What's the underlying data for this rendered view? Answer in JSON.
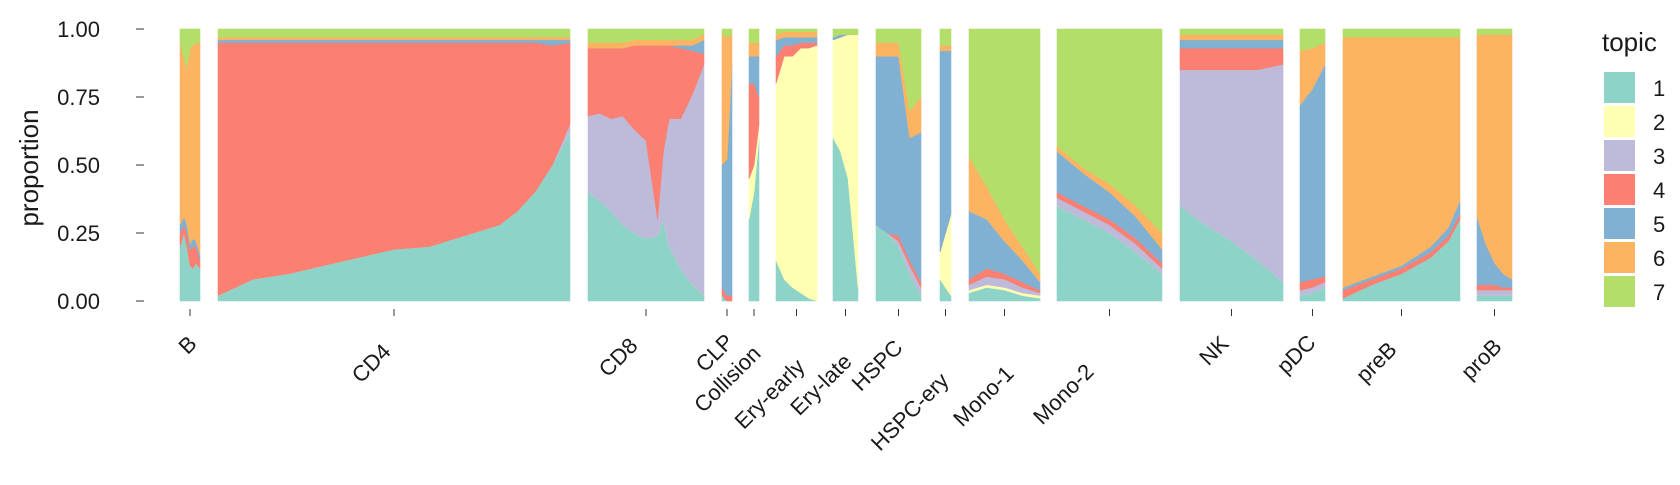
{
  "chart_data": {
    "type": "bar",
    "subtype": "stacked-structure-plot",
    "ylabel": "proportion",
    "ylim": [
      0,
      1
    ],
    "yticks": [
      "0.00",
      "0.25",
      "0.50",
      "0.75",
      "1.00"
    ],
    "legend": {
      "title": "topic",
      "position": "right"
    },
    "topics": [
      {
        "name": "1",
        "color": "#8DD3C7"
      },
      {
        "name": "2",
        "color": "#FFFFB3"
      },
      {
        "name": "3",
        "color": "#BEBADA"
      },
      {
        "name": "4",
        "color": "#FB8072"
      },
      {
        "name": "5",
        "color": "#80B1D3"
      },
      {
        "name": "6",
        "color": "#FDB462"
      },
      {
        "name": "7",
        "color": "#B3DE69"
      }
    ],
    "groups": [
      {
        "label": "B",
        "x": [
          0,
          0.2,
          0.35,
          0.5,
          0.65,
          0.8,
          1
        ],
        "series": [
          [
            0.2,
            0.25,
            0.2,
            0.13,
            0.12,
            0.14,
            0.12
          ],
          [
            0,
            0,
            0,
            0,
            0,
            0,
            0
          ],
          [
            0,
            0,
            0,
            0,
            0,
            0,
            0
          ],
          [
            0.05,
            0.03,
            0.05,
            0.06,
            0.08,
            0.06,
            0.03
          ],
          [
            0.03,
            0.03,
            0.03,
            0.02,
            0.03,
            0.02,
            0.02
          ],
          [
            0.67,
            0.58,
            0.58,
            0.72,
            0.71,
            0.73,
            0.78
          ],
          [
            0.05,
            0.11,
            0.14,
            0.07,
            0.06,
            0.05,
            0.05
          ]
        ]
      },
      {
        "label": "CD4",
        "x": [
          0,
          0.1,
          0.2,
          0.3,
          0.4,
          0.5,
          0.6,
          0.7,
          0.8,
          0.85,
          0.9,
          0.95,
          1
        ],
        "series": [
          [
            0.02,
            0.08,
            0.1,
            0.13,
            0.16,
            0.19,
            0.2,
            0.24,
            0.28,
            0.33,
            0.4,
            0.5,
            0.62
          ],
          [
            0,
            0,
            0,
            0,
            0,
            0,
            0,
            0,
            0,
            0,
            0,
            0,
            0
          ],
          [
            0,
            0,
            0,
            0,
            0,
            0,
            0,
            0,
            0,
            0,
            0,
            0,
            0.03
          ],
          [
            0.93,
            0.87,
            0.85,
            0.82,
            0.79,
            0.76,
            0.75,
            0.71,
            0.67,
            0.62,
            0.55,
            0.44,
            0.3
          ],
          [
            0.01,
            0.01,
            0.01,
            0.01,
            0.01,
            0.01,
            0.01,
            0.01,
            0.01,
            0.01,
            0.01,
            0.02,
            0.01
          ],
          [
            0.01,
            0.01,
            0.01,
            0.01,
            0.01,
            0.01,
            0.01,
            0.01,
            0.01,
            0.01,
            0.01,
            0.01,
            0.01
          ],
          [
            0.03,
            0.03,
            0.03,
            0.03,
            0.03,
            0.03,
            0.03,
            0.03,
            0.03,
            0.03,
            0.03,
            0.03,
            0.03
          ]
        ]
      },
      {
        "label": "CD8",
        "x": [
          0,
          0.1,
          0.2,
          0.3,
          0.4,
          0.5,
          0.6,
          0.65,
          0.7,
          0.8,
          0.9,
          1
        ],
        "series": [
          [
            0.4,
            0.37,
            0.33,
            0.28,
            0.25,
            0.23,
            0.24,
            0.3,
            0.2,
            0.12,
            0.06,
            0.02
          ],
          [
            0,
            0,
            0,
            0,
            0,
            0,
            0,
            0,
            0,
            0,
            0,
            0
          ],
          [
            0.28,
            0.32,
            0.34,
            0.4,
            0.38,
            0.36,
            0.06,
            0.25,
            0.47,
            0.55,
            0.7,
            0.85
          ],
          [
            0.25,
            0.24,
            0.26,
            0.25,
            0.31,
            0.35,
            0.64,
            0.39,
            0.27,
            0.26,
            0.16,
            0.04
          ],
          [
            0,
            0,
            0,
            0,
            0,
            0,
            0,
            0,
            0,
            0.01,
            0.02,
            0.05
          ],
          [
            0.02,
            0.02,
            0.02,
            0.02,
            0.02,
            0.02,
            0.02,
            0.02,
            0.02,
            0.02,
            0.02,
            0.02
          ],
          [
            0.05,
            0.05,
            0.05,
            0.05,
            0.04,
            0.04,
            0.04,
            0.04,
            0.04,
            0.04,
            0.04,
            0.02
          ]
        ]
      },
      {
        "label": "CLP",
        "x": [
          0,
          0.5,
          1
        ],
        "series": [
          [
            0.02,
            0,
            0
          ],
          [
            0,
            0,
            0
          ],
          [
            0,
            0,
            0
          ],
          [
            0.03,
            0.02,
            0.02
          ],
          [
            0.45,
            0.5,
            0.85
          ],
          [
            0.48,
            0.45,
            0.11
          ],
          [
            0.02,
            0.03,
            0.02
          ]
        ]
      },
      {
        "label": "Collision",
        "x": [
          0,
          0.5,
          1
        ],
        "series": [
          [
            0.3,
            0.4,
            0.6
          ],
          [
            0.15,
            0.1,
            0.05
          ],
          [
            0,
            0,
            0
          ],
          [
            0.35,
            0.3,
            0.1
          ],
          [
            0.1,
            0.1,
            0.15
          ],
          [
            0.05,
            0.05,
            0.05
          ],
          [
            0.05,
            0.05,
            0.05
          ]
        ]
      },
      {
        "label": "Ery-early",
        "x": [
          0,
          0.2,
          0.4,
          0.6,
          0.8,
          1
        ],
        "series": [
          [
            0.15,
            0.08,
            0.05,
            0.03,
            0.01,
            0
          ],
          [
            0.65,
            0.82,
            0.85,
            0.9,
            0.92,
            0.94
          ],
          [
            0,
            0,
            0,
            0,
            0,
            0
          ],
          [
            0.1,
            0.04,
            0.04,
            0.02,
            0.02,
            0.01
          ],
          [
            0.06,
            0.03,
            0.03,
            0.02,
            0.02,
            0.02
          ],
          [
            0.02,
            0.02,
            0.02,
            0.02,
            0.02,
            0.02
          ],
          [
            0.02,
            0.01,
            0.01,
            0.01,
            0.01,
            0.01
          ]
        ]
      },
      {
        "label": "Ery-late",
        "x": [
          0,
          0.3,
          0.6,
          1
        ],
        "series": [
          [
            0.6,
            0.55,
            0.45,
            0.05
          ],
          [
            0.36,
            0.42,
            0.53,
            0.93
          ],
          [
            0,
            0,
            0,
            0
          ],
          [
            0,
            0,
            0,
            0
          ],
          [
            0.01,
            0.01,
            0,
            0
          ],
          [
            0,
            0,
            0,
            0
          ],
          [
            0.03,
            0.02,
            0.02,
            0.02
          ]
        ]
      },
      {
        "label": "HSPC",
        "x": [
          0,
          0.25,
          0.5,
          0.75,
          1
        ],
        "series": [
          [
            0.28,
            0.25,
            0.2,
            0.1,
            0.02
          ],
          [
            0,
            0,
            0,
            0,
            0
          ],
          [
            0,
            0,
            0.02,
            0.03,
            0.03
          ],
          [
            0,
            0,
            0.02,
            0.02,
            0.02
          ],
          [
            0.62,
            0.65,
            0.66,
            0.45,
            0.55
          ],
          [
            0.05,
            0.05,
            0.05,
            0.1,
            0.13
          ],
          [
            0.05,
            0.05,
            0.05,
            0.3,
            0.25
          ]
        ]
      },
      {
        "label": "HSPC-ery",
        "x": [
          0,
          0.5,
          1
        ],
        "series": [
          [
            0.08,
            0.05,
            0.02
          ],
          [
            0.1,
            0.2,
            0.3
          ],
          [
            0,
            0,
            0
          ],
          [
            0,
            0,
            0
          ],
          [
            0.74,
            0.67,
            0.6
          ],
          [
            0.02,
            0.02,
            0.02
          ],
          [
            0.06,
            0.06,
            0.06
          ]
        ]
      },
      {
        "label": "Mono-1",
        "x": [
          0,
          0.25,
          0.5,
          0.75,
          1
        ],
        "series": [
          [
            0.03,
            0.05,
            0.04,
            0.02,
            0.01
          ],
          [
            0.01,
            0.01,
            0.01,
            0.01,
            0.01
          ],
          [
            0.02,
            0.03,
            0.03,
            0.02,
            0.01
          ],
          [
            0.02,
            0.03,
            0.02,
            0.02,
            0.01
          ],
          [
            0.25,
            0.18,
            0.12,
            0.08,
            0.03
          ],
          [
            0.2,
            0.12,
            0.08,
            0.05,
            0.03
          ],
          [
            0.47,
            0.58,
            0.7,
            0.8,
            0.9
          ]
        ]
      },
      {
        "label": "Mono-2",
        "x": [
          0,
          0.25,
          0.5,
          0.75,
          1
        ],
        "series": [
          [
            0.35,
            0.3,
            0.25,
            0.18,
            0.1
          ],
          [
            0,
            0,
            0,
            0,
            0
          ],
          [
            0.03,
            0.03,
            0.03,
            0.03,
            0.02
          ],
          [
            0.02,
            0.02,
            0.02,
            0.02,
            0.02
          ],
          [
            0.15,
            0.12,
            0.1,
            0.08,
            0.05
          ],
          [
            0.02,
            0.02,
            0.03,
            0.04,
            0.06
          ],
          [
            0.43,
            0.51,
            0.57,
            0.65,
            0.75
          ]
        ]
      },
      {
        "label": "NK",
        "x": [
          0,
          0.25,
          0.5,
          0.75,
          1
        ],
        "series": [
          [
            0.35,
            0.28,
            0.22,
            0.15,
            0.07
          ],
          [
            0,
            0,
            0,
            0,
            0
          ],
          [
            0.5,
            0.57,
            0.63,
            0.7,
            0.8
          ],
          [
            0.08,
            0.08,
            0.08,
            0.08,
            0.06
          ],
          [
            0.03,
            0.03,
            0.03,
            0.03,
            0.03
          ],
          [
            0.02,
            0.02,
            0.02,
            0.02,
            0.02
          ],
          [
            0.02,
            0.02,
            0.02,
            0.02,
            0.02
          ]
        ]
      },
      {
        "label": "pDC",
        "x": [
          0,
          0.5,
          1
        ],
        "series": [
          [
            0.02,
            0.03,
            0.05
          ],
          [
            0,
            0,
            0
          ],
          [
            0.02,
            0.02,
            0.02
          ],
          [
            0.03,
            0.03,
            0.02
          ],
          [
            0.65,
            0.7,
            0.78
          ],
          [
            0.2,
            0.15,
            0.08
          ],
          [
            0.08,
            0.07,
            0.05
          ]
        ]
      },
      {
        "label": "preB",
        "x": [
          0,
          0.25,
          0.5,
          0.75,
          0.9,
          1
        ],
        "series": [
          [
            0.01,
            0.06,
            0.1,
            0.16,
            0.22,
            0.3
          ],
          [
            0,
            0,
            0,
            0,
            0,
            0
          ],
          [
            0,
            0,
            0,
            0,
            0,
            0
          ],
          [
            0.03,
            0.02,
            0.02,
            0.02,
            0.02,
            0.02
          ],
          [
            0.01,
            0.01,
            0.01,
            0.02,
            0.03,
            0.05
          ],
          [
            0.92,
            0.88,
            0.84,
            0.77,
            0.7,
            0.6
          ],
          [
            0.03,
            0.03,
            0.03,
            0.03,
            0.03,
            0.03
          ]
        ]
      },
      {
        "label": "proB",
        "x": [
          0,
          0.25,
          0.5,
          0.75,
          1
        ],
        "series": [
          [
            0.02,
            0.02,
            0.02,
            0.02,
            0.02
          ],
          [
            0,
            0,
            0,
            0,
            0
          ],
          [
            0.02,
            0.02,
            0.02,
            0.02,
            0.02
          ],
          [
            0.02,
            0.02,
            0.02,
            0.01,
            0.01
          ],
          [
            0.25,
            0.15,
            0.08,
            0.05,
            0.03
          ],
          [
            0.67,
            0.77,
            0.84,
            0.88,
            0.9
          ],
          [
            0.02,
            0.02,
            0.02,
            0.02,
            0.02
          ]
        ]
      }
    ]
  }
}
